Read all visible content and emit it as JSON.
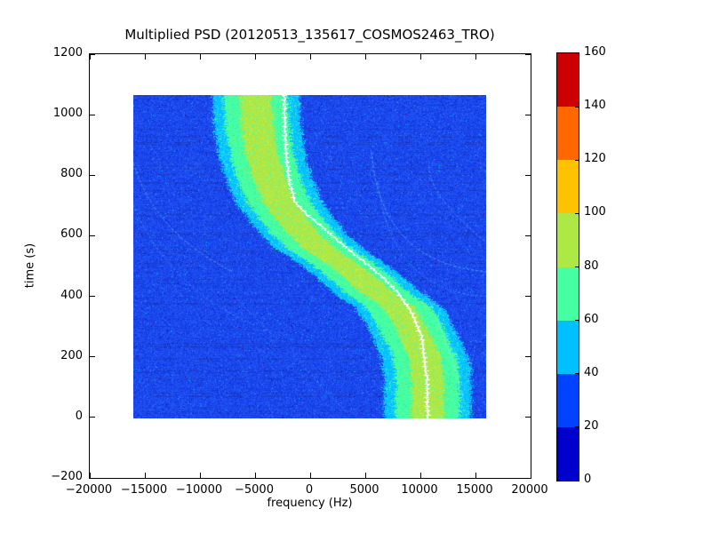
{
  "chart_data": {
    "type": "heatmap",
    "title": "Multiplied PSD (20120513_135617_COSMOS2463_TRO)",
    "xlabel": "frequency (Hz)",
    "ylabel": "time (s)",
    "xlim": [
      -20000,
      20000
    ],
    "ylim": [
      -200,
      1200
    ],
    "grid": false,
    "x_tick_values": [
      -20000,
      -15000,
      -10000,
      -5000,
      0,
      5000,
      10000,
      15000,
      20000
    ],
    "x_tick_labels": [
      "−20000",
      "−15000",
      "−10000",
      "−5000",
      "0",
      "5000",
      "10000",
      "15000",
      "20000"
    ],
    "y_tick_values": [
      -200,
      0,
      200,
      400,
      600,
      800,
      1000,
      1200
    ],
    "y_tick_labels": [
      "−200",
      "0",
      "200",
      "400",
      "600",
      "800",
      "1000",
      "1200"
    ],
    "data_extent": {
      "freq_hz": [
        -16000,
        16000
      ],
      "time_s": [
        0,
        1060
      ]
    },
    "colorbar": {
      "tick_values": [
        0,
        20,
        40,
        60,
        80,
        100,
        120,
        140,
        160
      ],
      "tick_labels": [
        "0",
        "20",
        "40",
        "60",
        "80",
        "100",
        "120",
        "140",
        "160"
      ],
      "segment_colors": [
        "#0000CC",
        "#0043FF",
        "#00C0FF",
        "#47FFA3",
        "#AEE845",
        "#FFC200",
        "#FF6800",
        "#CC0000"
      ]
    },
    "background_noise": {
      "base_color": "#1B49EE",
      "approx_value_range": [
        20,
        40
      ]
    },
    "doppler_band": {
      "description": "S-shaped satellite Doppler track, frequency center vs time",
      "center_track": [
        [
          0,
          10650
        ],
        [
          120,
          10690
        ],
        [
          200,
          10420
        ],
        [
          270,
          9500
        ],
        [
          320,
          8800
        ],
        [
          365,
          8000
        ],
        [
          412,
          6080
        ],
        [
          460,
          4600
        ],
        [
          510,
          2800
        ],
        [
          558,
          800
        ],
        [
          610,
          -700
        ],
        [
          660,
          -1800
        ],
        [
          705,
          -2750
        ],
        [
          780,
          -3650
        ],
        [
          860,
          -4350
        ],
        [
          950,
          -4750
        ],
        [
          1060,
          -4950
        ]
      ],
      "peak_track": [
        [
          0,
          10620
        ],
        [
          120,
          10580
        ],
        [
          200,
          10300
        ],
        [
          270,
          10050
        ],
        [
          320,
          9510
        ],
        [
          365,
          8840
        ],
        [
          412,
          7900
        ],
        [
          460,
          6620
        ],
        [
          510,
          4950
        ],
        [
          558,
          3280
        ],
        [
          610,
          1590
        ],
        [
          655,
          120
        ],
        [
          705,
          -1350
        ],
        [
          780,
          -1950
        ],
        [
          860,
          -2200
        ],
        [
          950,
          -2330
        ],
        [
          1060,
          -2400
        ]
      ],
      "halfwidths_hz": {
        "outer_cyan": 3950,
        "mid_green": 2900,
        "core_yellow": 1450
      },
      "band_colors": {
        "outer": "#00C0FF",
        "mid": "#47FFA3",
        "core": "#AEE845",
        "peak_line": "#FFFFFF"
      }
    },
    "artifact_arcs": [
      {
        "rgb": "120,225,255",
        "alpha": 0.55,
        "quad": [
          [
            5593,
            873
          ],
          [
            6398,
            509
          ],
          [
            15976,
            480
          ]
        ]
      },
      {
        "rgb": "120,225,255",
        "alpha": 0.45,
        "quad": [
          [
            10825,
            827
          ],
          [
            10744,
            733
          ],
          [
            15814,
            582
          ]
        ]
      },
      {
        "rgb": "100,220,255",
        "alpha": 0.35,
        "quad": [
          [
            6157,
            777
          ],
          [
            7363,
            413
          ],
          [
            15976,
            398
          ]
        ]
      },
      {
        "rgb": "120,225,255",
        "alpha": 0.5,
        "quad": [
          [
            -15975,
            835
          ],
          [
            -14043,
            605
          ],
          [
            -6962,
            479
          ]
        ]
      },
      {
        "rgb": "100,220,255",
        "alpha": 0.35,
        "quad": [
          [
            -16000,
            700
          ],
          [
            -13000,
            430
          ],
          [
            -4800,
            300
          ]
        ]
      },
      {
        "rgb": "110,230,255",
        "alpha": 0.3,
        "quad": [
          [
            -6720,
            398
          ],
          [
            -4869,
            319
          ],
          [
            -2696,
            252
          ]
        ]
      },
      {
        "rgb": "110,230,255",
        "alpha": 0.3,
        "quad": [
          [
            -1489,
            208
          ],
          [
            765,
            106
          ],
          [
            3340,
            19
          ]
        ]
      },
      {
        "rgb": "140,240,255",
        "alpha": 0.7,
        "quad": [
          [
            10422,
            420
          ],
          [
            12600,
            240
          ],
          [
            13960,
            60
          ]
        ]
      },
      {
        "rgb": "110,230,255",
        "alpha": 0.35,
        "quad": [
          [
            15009,
            237
          ],
          [
            14365,
            106
          ],
          [
            13158,
            4
          ]
        ]
      }
    ]
  }
}
